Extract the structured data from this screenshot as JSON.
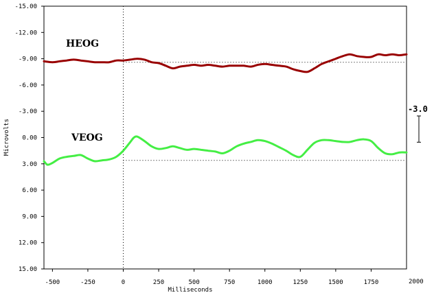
{
  "chart_data": {
    "type": "line",
    "xlabel": "Milliseconds",
    "ylabel": "Microvolts",
    "xlim": [
      -560,
      2000
    ],
    "ylim": [
      -15.0,
      15.0
    ],
    "y_inverted": true,
    "x_ticks": [
      -500,
      -250,
      0,
      250,
      500,
      750,
      1000,
      1250,
      1500,
      1750,
      2000
    ],
    "x_tick_labels": [
      "-500",
      "-250",
      "0",
      "250",
      "500",
      "750",
      "1000",
      "1250",
      "1500",
      "1750",
      "2000"
    ],
    "y_ticks": [
      -15,
      -12,
      -9,
      -6,
      -3,
      0,
      3,
      6,
      9,
      12,
      15
    ],
    "y_tick_labels": [
      "-15.00",
      "-12.00",
      "-9.00",
      "-6.00",
      "-3.00",
      "0.00",
      "3.00",
      "6.00",
      "9.00",
      "12.00",
      "15.00"
    ],
    "zero_marker_x": 0,
    "scale_bar": {
      "label": "-3.0",
      "from": -3.0,
      "to": 0.0
    },
    "series": [
      {
        "name": "HEOG",
        "color": "#990000",
        "baseline": -8.6,
        "x": [
          -560,
          -500,
          -450,
          -400,
          -350,
          -300,
          -250,
          -200,
          -150,
          -100,
          -50,
          0,
          50,
          100,
          150,
          200,
          250,
          300,
          350,
          400,
          450,
          500,
          550,
          600,
          650,
          700,
          750,
          800,
          850,
          900,
          950,
          1000,
          1050,
          1100,
          1150,
          1200,
          1250,
          1300,
          1350,
          1400,
          1450,
          1500,
          1550,
          1600,
          1650,
          1700,
          1750,
          1800,
          1850,
          1900,
          1950,
          2000
        ],
        "values": [
          -8.7,
          -8.6,
          -8.7,
          -8.8,
          -8.9,
          -8.8,
          -8.7,
          -8.6,
          -8.6,
          -8.6,
          -8.8,
          -8.8,
          -8.9,
          -9.0,
          -8.9,
          -8.6,
          -8.5,
          -8.2,
          -7.9,
          -8.1,
          -8.2,
          -8.3,
          -8.2,
          -8.3,
          -8.2,
          -8.1,
          -8.2,
          -8.2,
          -8.2,
          -8.1,
          -8.3,
          -8.4,
          -8.3,
          -8.2,
          -8.1,
          -7.8,
          -7.6,
          -7.5,
          -7.9,
          -8.4,
          -8.7,
          -9.0,
          -9.3,
          -9.5,
          -9.3,
          -9.2,
          -9.2,
          -9.5,
          -9.4,
          -9.5,
          -9.4,
          -9.5
        ]
      },
      {
        "name": "VEOG",
        "color": "#44ee44",
        "baseline": 2.6,
        "x": [
          -560,
          -535,
          -500,
          -450,
          -400,
          -350,
          -300,
          -250,
          -200,
          -150,
          -100,
          -50,
          0,
          50,
          75,
          100,
          150,
          200,
          250,
          300,
          350,
          400,
          450,
          500,
          550,
          600,
          650,
          700,
          750,
          800,
          850,
          900,
          950,
          1000,
          1050,
          1100,
          1150,
          1200,
          1250,
          1300,
          1350,
          1400,
          1450,
          1500,
          1550,
          1600,
          1650,
          1700,
          1750,
          1800,
          1850,
          1900,
          1950,
          2000
        ],
        "values": [
          2.7,
          3.1,
          2.9,
          2.4,
          2.2,
          2.1,
          2.0,
          2.4,
          2.7,
          2.6,
          2.5,
          2.2,
          1.5,
          0.5,
          0.0,
          -0.1,
          0.4,
          1.0,
          1.3,
          1.2,
          1.0,
          1.2,
          1.4,
          1.3,
          1.4,
          1.5,
          1.6,
          1.8,
          1.5,
          1.0,
          0.7,
          0.5,
          0.3,
          0.4,
          0.7,
          1.1,
          1.5,
          2.0,
          2.2,
          1.4,
          0.6,
          0.3,
          0.3,
          0.4,
          0.5,
          0.5,
          0.3,
          0.2,
          0.4,
          1.2,
          1.8,
          1.9,
          1.7,
          1.7
        ]
      }
    ]
  }
}
